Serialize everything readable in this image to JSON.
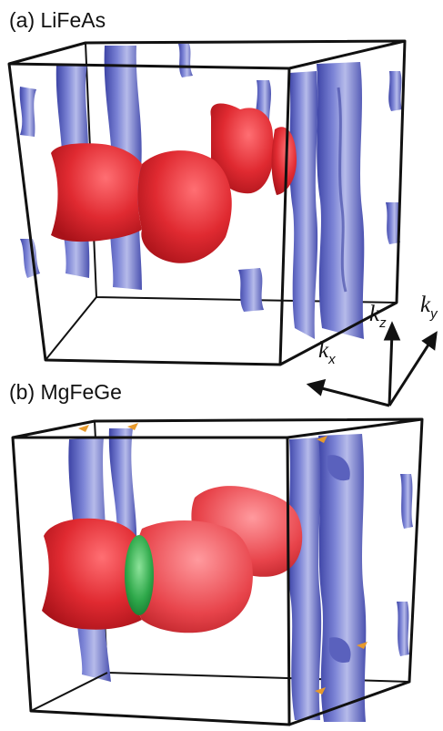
{
  "panels": [
    {
      "label": "(a) LiFeAs"
    },
    {
      "label": "(b) MgFeGe"
    }
  ],
  "axes": {
    "kx": {
      "letter": "k",
      "sub": "x"
    },
    "kz": {
      "letter": "k",
      "sub": "z"
    },
    "ky": {
      "letter": "k",
      "sub": "y"
    }
  },
  "colors": {
    "hole_pocket": "#6d74c9",
    "electron_pocket": "#d8242b",
    "green_pocket": "#2ea84a",
    "orange_pocket": "#e79a2c",
    "box_edge": "#111111"
  }
}
